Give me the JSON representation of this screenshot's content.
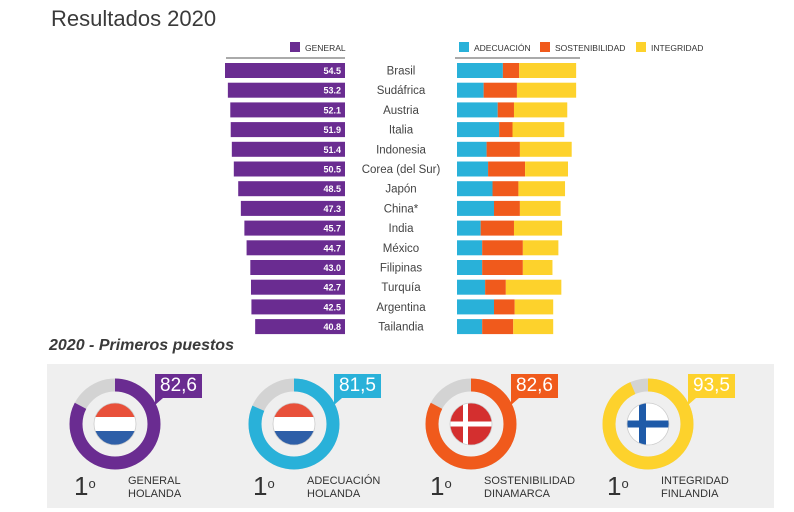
{
  "title": "Resultados 2020",
  "subtitle": "2020 - Primeros puestos",
  "colors": {
    "general": "#6a2c91",
    "adecuacion": "#29b1d9",
    "sostenibilidad": "#f05a1c",
    "integridad": "#fdd22c",
    "ring_bg": "#d3d3d3",
    "flag_red": "#e8503a",
    "flag_blue": "#2e5fa8",
    "flag_dk": "#d42f2f",
    "flag_fi": "#1e5aa8"
  },
  "chart_data": {
    "type": "bar",
    "categories": [
      "Brasil",
      "Sudáfrica",
      "Austria",
      "Italia",
      "Indonesia",
      "Corea (del Sur)",
      "Japón",
      "China*",
      "India",
      "México",
      "Filipinas",
      "Turquía",
      "Argentina",
      "Tailandia"
    ],
    "series": [
      {
        "name": "GENERAL",
        "values": [
          54.5,
          53.2,
          52.1,
          51.9,
          51.4,
          50.5,
          48.5,
          47.3,
          45.7,
          44.7,
          43.0,
          42.7,
          42.5,
          40.8
        ],
        "labels": [
          "54.5",
          "53.2",
          "52.1",
          "51.9",
          "51.4",
          "50.5",
          "48.5",
          "47.3",
          "45.7",
          "44.7",
          "43.0",
          "42.7",
          "42.5",
          "40.8"
        ]
      },
      {
        "name": "ADECUACIÓN",
        "values": [
          62,
          36,
          55,
          57,
          40,
          42,
          48,
          50,
          32,
          34,
          34,
          38,
          50,
          34
        ]
      },
      {
        "name": "SOSTENIBILIDAD",
        "values": [
          22,
          45,
          22,
          18,
          45,
          50,
          35,
          35,
          45,
          55,
          55,
          28,
          28,
          42
        ]
      },
      {
        "name": "INTEGRIDAD",
        "values": [
          77,
          80,
          72,
          70,
          70,
          58,
          63,
          55,
          65,
          48,
          40,
          75,
          52,
          54
        ]
      }
    ]
  },
  "top": [
    {
      "score": "82,6",
      "value": 82.6,
      "category": "GENERAL",
      "country": "HOLANDA",
      "rank": "1",
      "sup": "o",
      "color": "general",
      "flag": "nl"
    },
    {
      "score": "81,5",
      "value": 81.5,
      "category": "ADECUACIÓN",
      "country": "HOLANDA",
      "rank": "1",
      "sup": "o",
      "color": "adecuacion",
      "flag": "nl"
    },
    {
      "score": "82,6",
      "value": 82.6,
      "category": "SOSTENIBILIDAD",
      "country": "DINAMARCA",
      "rank": "1",
      "sup": "o",
      "color": "sostenibilidad",
      "flag": "dk"
    },
    {
      "score": "93,5",
      "value": 93.5,
      "category": "INTEGRIDAD",
      "country": "FINLANDIA",
      "rank": "1",
      "sup": "o",
      "color": "integridad",
      "flag": "fi"
    }
  ]
}
